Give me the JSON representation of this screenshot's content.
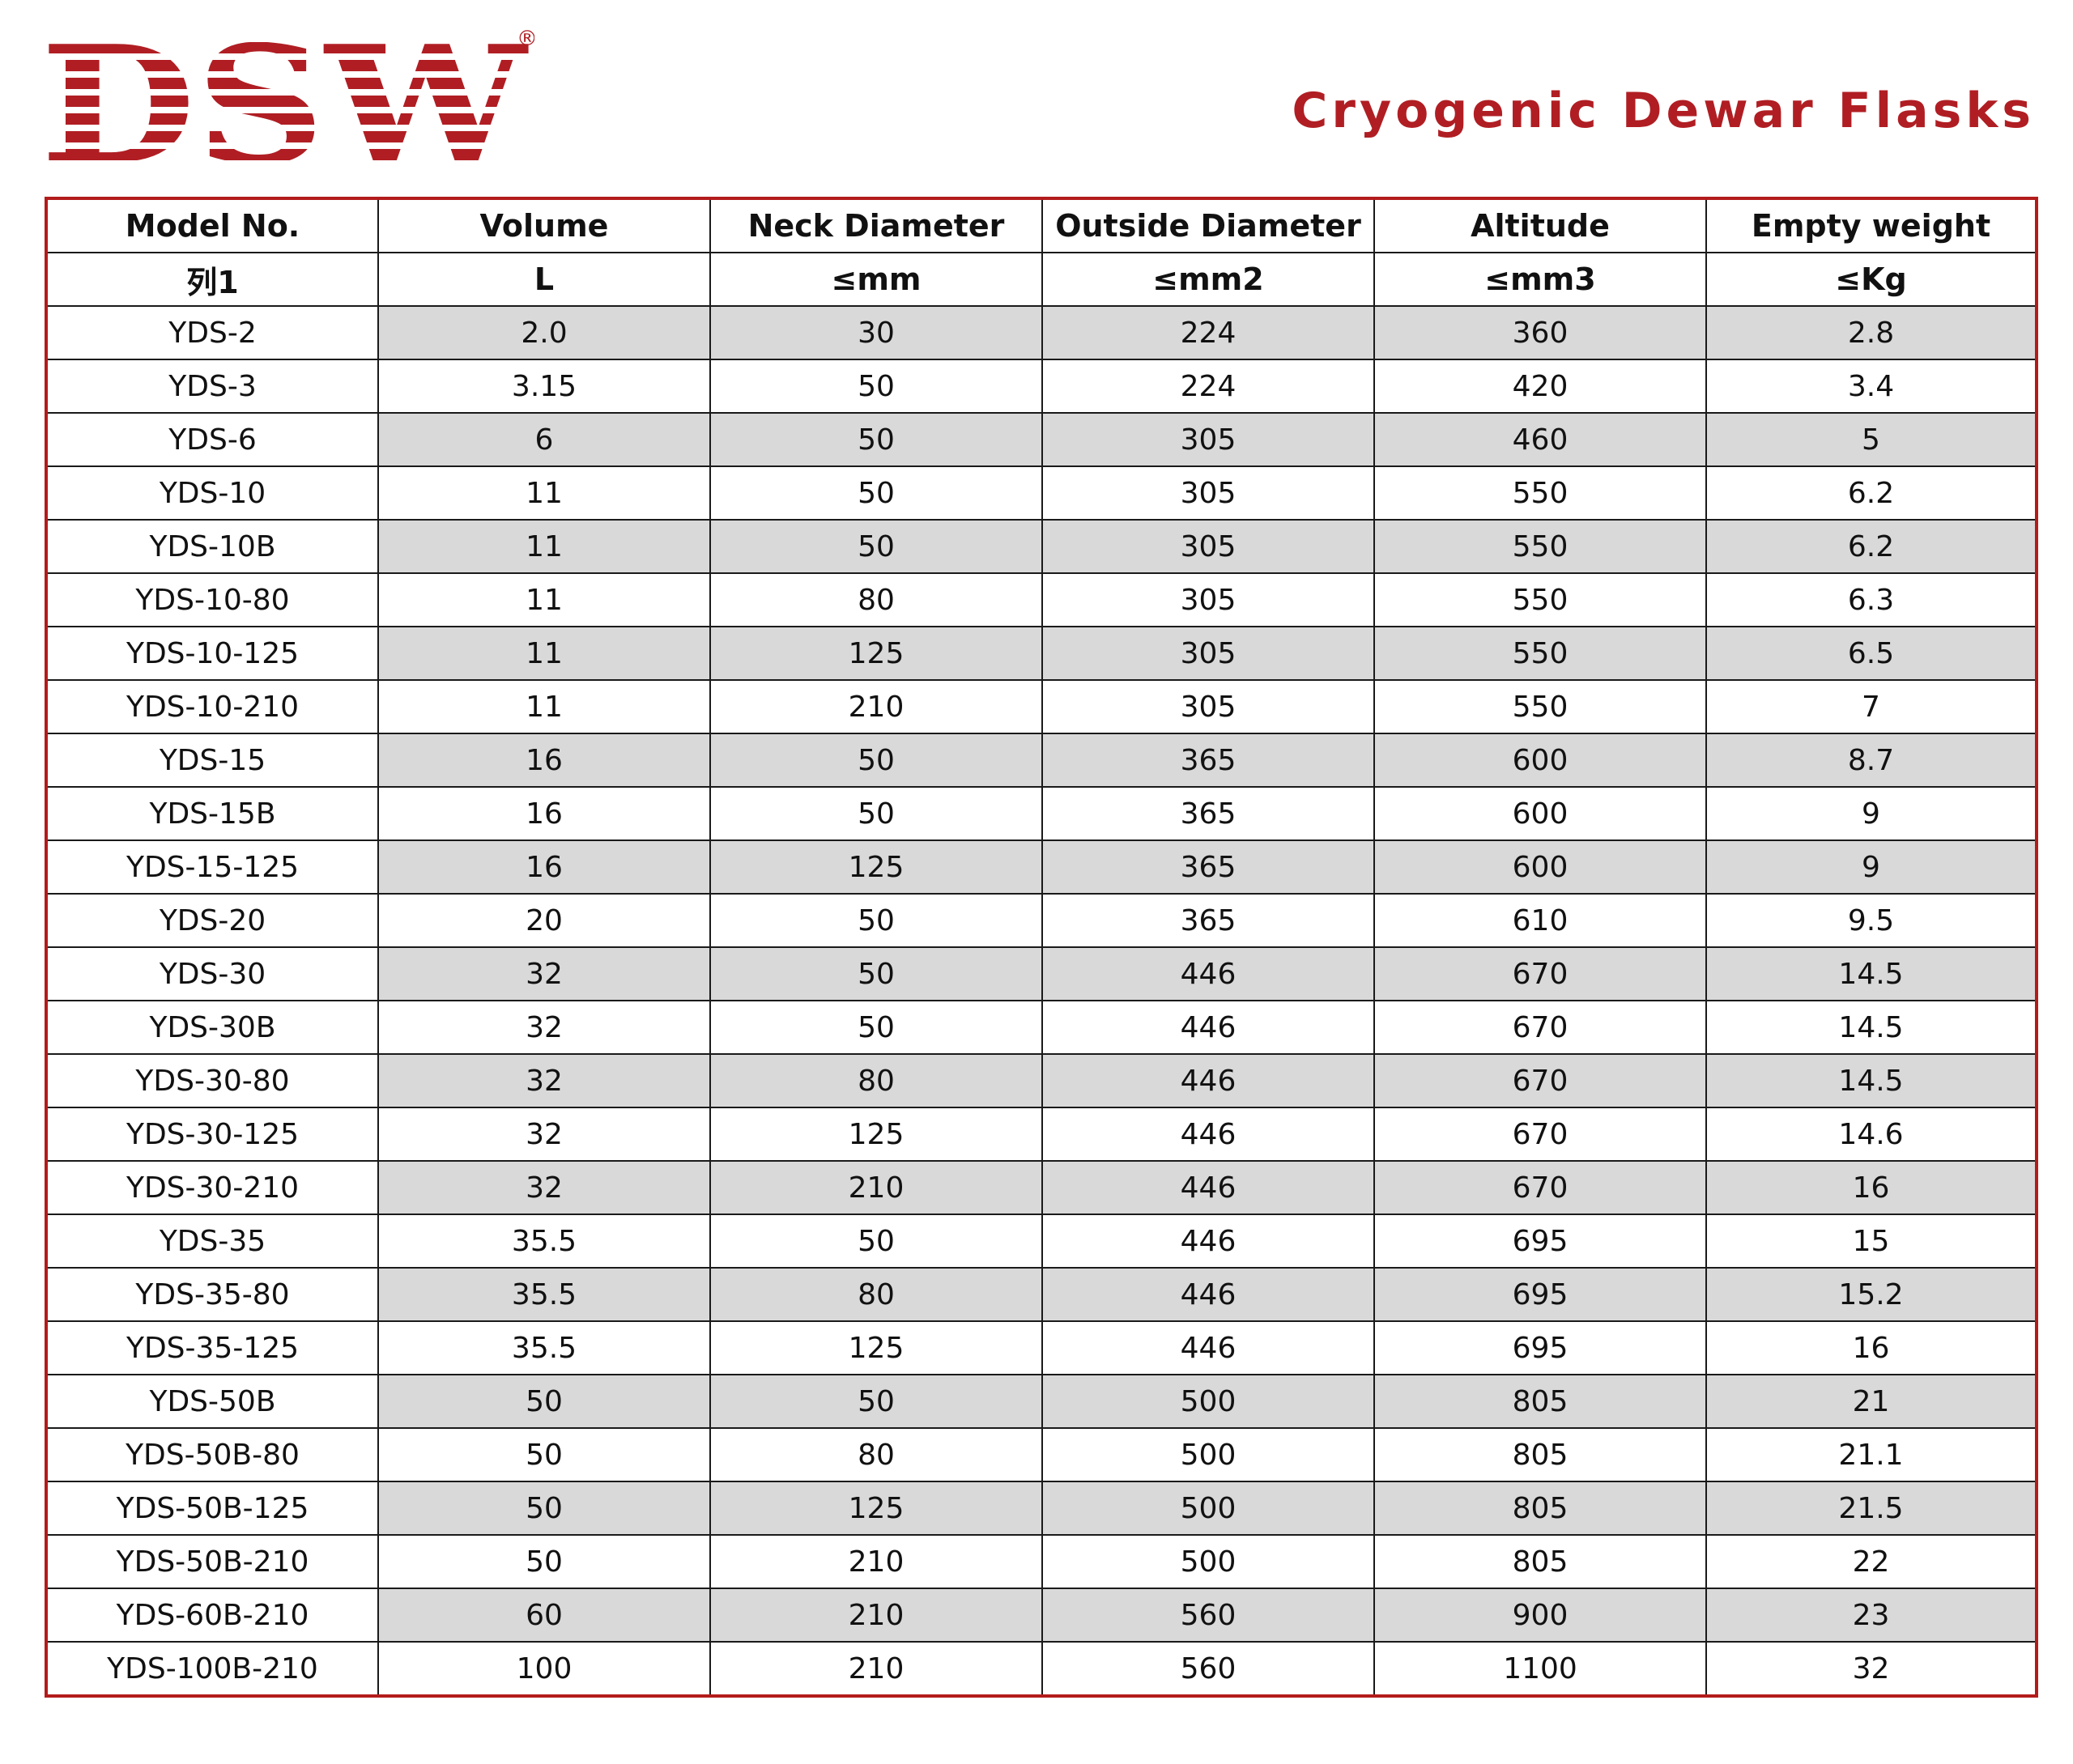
{
  "logo": {
    "text": "DSW",
    "registered_mark": "®",
    "color": "#b01e23"
  },
  "title": "Cryogenic Dewar Flasks",
  "table": {
    "headers": [
      "Model No.",
      "Volume",
      "Neck Diameter",
      "Outside Diameter",
      "Altitude",
      "Empty weight"
    ],
    "units": [
      "列1",
      "L",
      "≤mm",
      "≤mm2",
      "≤mm3",
      "≤Kg"
    ],
    "rows": [
      [
        "YDS-2",
        "2.0",
        "30",
        "224",
        "360",
        "2.8"
      ],
      [
        "YDS-3",
        "3.15",
        "50",
        "224",
        "420",
        "3.4"
      ],
      [
        "YDS-6",
        "6",
        "50",
        "305",
        "460",
        "5"
      ],
      [
        "YDS-10",
        "11",
        "50",
        "305",
        "550",
        "6.2"
      ],
      [
        "YDS-10B",
        "11",
        "50",
        "305",
        "550",
        "6.2"
      ],
      [
        "YDS-10-80",
        "11",
        "80",
        "305",
        "550",
        "6.3"
      ],
      [
        "YDS-10-125",
        "11",
        "125",
        "305",
        "550",
        "6.5"
      ],
      [
        "YDS-10-210",
        "11",
        "210",
        "305",
        "550",
        "7"
      ],
      [
        "YDS-15",
        "16",
        "50",
        "365",
        "600",
        "8.7"
      ],
      [
        "YDS-15B",
        "16",
        "50",
        "365",
        "600",
        "9"
      ],
      [
        "YDS-15-125",
        "16",
        "125",
        "365",
        "600",
        "9"
      ],
      [
        "YDS-20",
        "20",
        "50",
        "365",
        "610",
        "9.5"
      ],
      [
        "YDS-30",
        "32",
        "50",
        "446",
        "670",
        "14.5"
      ],
      [
        "YDS-30B",
        "32",
        "50",
        "446",
        "670",
        "14.5"
      ],
      [
        "YDS-30-80",
        "32",
        "80",
        "446",
        "670",
        "14.5"
      ],
      [
        "YDS-30-125",
        "32",
        "125",
        "446",
        "670",
        "14.6"
      ],
      [
        "YDS-30-210",
        "32",
        "210",
        "446",
        "670",
        "16"
      ],
      [
        "YDS-35",
        "35.5",
        "50",
        "446",
        "695",
        "15"
      ],
      [
        "YDS-35-80",
        "35.5",
        "80",
        "446",
        "695",
        "15.2"
      ],
      [
        "YDS-35-125",
        "35.5",
        "125",
        "446",
        "695",
        "16"
      ],
      [
        "YDS-50B",
        "50",
        "50",
        "500",
        "805",
        "21"
      ],
      [
        "YDS-50B-80",
        "50",
        "80",
        "500",
        "805",
        "21.1"
      ],
      [
        "YDS-50B-125",
        "50",
        "125",
        "500",
        "805",
        "21.5"
      ],
      [
        "YDS-50B-210",
        "50",
        "210",
        "500",
        "805",
        "22"
      ],
      [
        "YDS-60B-210",
        "60",
        "210",
        "560",
        "900",
        "23"
      ],
      [
        "YDS-100B-210",
        "100",
        "210",
        "560",
        "1100",
        "32"
      ]
    ]
  }
}
